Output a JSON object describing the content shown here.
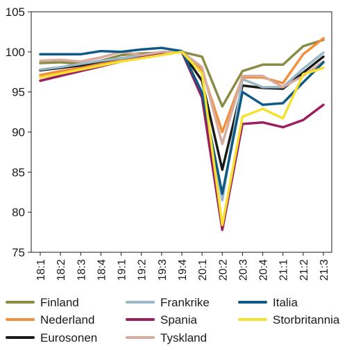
{
  "chart_data": {
    "type": "line",
    "categories": [
      "18:1",
      "18:2",
      "18:3",
      "18:4",
      "19:1",
      "19:2",
      "19:3",
      "19:4",
      "20:1",
      "20:2",
      "20:3",
      "20:4",
      "21:1",
      "21:2",
      "21:3"
    ],
    "ylim": [
      75,
      105
    ],
    "yticks": [
      75,
      80,
      85,
      90,
      95,
      100,
      105
    ],
    "grid": false,
    "legend_position": "bottom",
    "series": [
      {
        "name": "Finland",
        "color": "#8a8c45",
        "values": [
          98.6,
          98.7,
          98.5,
          98.9,
          99.6,
          99.8,
          99.9,
          100.0,
          99.4,
          93.2,
          97.6,
          98.4,
          98.4,
          100.7,
          101.5
        ]
      },
      {
        "name": "Nederland",
        "color": "#f28e3c",
        "values": [
          97.1,
          97.6,
          98.0,
          98.6,
          99.0,
          99.3,
          99.7,
          100.0,
          97.7,
          90.0,
          96.8,
          96.8,
          96.1,
          99.7,
          101.7
        ]
      },
      {
        "name": "Eurosonen",
        "color": "#1a1a1a",
        "values": [
          97.7,
          98.0,
          98.3,
          98.8,
          99.2,
          99.5,
          99.8,
          100.0,
          96.4,
          85.3,
          95.8,
          95.5,
          95.4,
          97.4,
          99.4
        ]
      },
      {
        "name": "Frankrike",
        "color": "#9ab8c6",
        "values": [
          97.8,
          98.1,
          98.5,
          98.9,
          99.2,
          99.5,
          99.8,
          100.0,
          95.0,
          81.5,
          96.6,
          95.6,
          95.6,
          97.9,
          99.9
        ]
      },
      {
        "name": "Spania",
        "color": "#9b1f5e",
        "values": [
          96.4,
          97.0,
          97.6,
          98.2,
          98.8,
          99.3,
          99.7,
          100.0,
          94.3,
          77.8,
          91.0,
          91.2,
          90.6,
          91.5,
          93.4
        ]
      },
      {
        "name": "Tyskland",
        "color": "#d7ac9e",
        "values": [
          98.9,
          99.0,
          98.8,
          99.3,
          100.0,
          99.6,
          100.0,
          100.0,
          98.1,
          88.5,
          97.0,
          97.0,
          95.6,
          97.0,
          98.8
        ]
      },
      {
        "name": "Italia",
        "color": "#0e5a85",
        "values": [
          99.7,
          99.7,
          99.7,
          100.1,
          100.0,
          100.3,
          100.5,
          100.1,
          94.9,
          82.3,
          95.0,
          93.4,
          93.6,
          96.2,
          98.7
        ]
      },
      {
        "name": "Storbritannia",
        "color": "#f5e130",
        "values": [
          96.8,
          97.3,
          97.8,
          98.3,
          98.8,
          99.2,
          99.6,
          100.0,
          97.3,
          78.4,
          91.9,
          92.9,
          91.7,
          97.2,
          98.0
        ]
      }
    ]
  }
}
